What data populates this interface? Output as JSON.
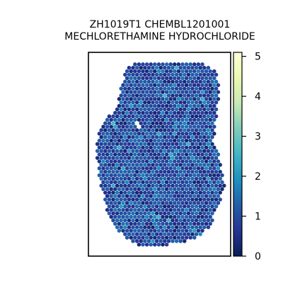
{
  "chart_data": {
    "type": "scatter",
    "title_lines": [
      "ZH1019T1 CHEMBL1201001",
      "MECHLORETHAMINE HYDROCHLORIDE"
    ],
    "colormap": "YlGnBu_r",
    "colorbar": {
      "min": 0,
      "max": 5.1,
      "ticks": [
        0,
        1,
        2,
        3,
        4,
        5
      ],
      "tick_labels": [
        "0",
        "1",
        "2",
        "3",
        "4",
        "5"
      ],
      "colors": [
        "#081d58",
        "#253494",
        "#225ea8",
        "#1d91c0",
        "#41b6c4",
        "#7fcdbb",
        "#c7e9b4",
        "#edf8b1",
        "#ffffd9"
      ]
    },
    "axes": {
      "xticks": false,
      "yticks": false,
      "frame": true
    },
    "spots": {
      "description_values": "per-spot expression value, mostly 0.3-1.6 with sparse highs up to ~2.5",
      "typical_range": [
        0.2,
        1.8
      ],
      "max_observed": 2.6
    }
  }
}
